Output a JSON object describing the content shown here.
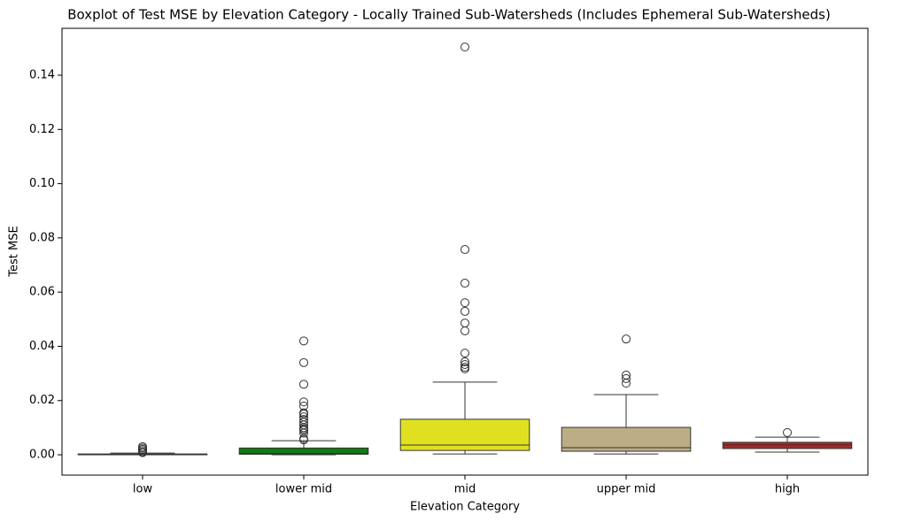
{
  "chart_data": {
    "type": "box",
    "title": "Boxplot of Test MSE by Elevation Category - Locally Trained Sub-Watersheds (Includes Ephemeral Sub-Watersheds)",
    "x_label": "Elevation Category",
    "y_label": "Test MSE",
    "categories": [
      "low",
      "lower mid",
      "mid",
      "upper mid",
      "high"
    ],
    "boxes": [
      {
        "color": "#4f5fa0",
        "min": 0.0,
        "q1": 0.0,
        "median": 0.0001,
        "q3": 0.0003,
        "max": 0.0006,
        "outliers": [
          0.0008,
          0.001,
          0.0015,
          0.002,
          0.0025,
          0.003
        ]
      },
      {
        "color": "#117a11",
        "min": 0.0,
        "q1": 0.0002,
        "median": 0.0005,
        "q3": 0.0025,
        "max": 0.0052,
        "outliers": [
          0.0055,
          0.006,
          0.008,
          0.009,
          0.0095,
          0.01,
          0.011,
          0.012,
          0.013,
          0.014,
          0.015,
          0.0155,
          0.018,
          0.0195,
          0.026,
          0.034,
          0.042
        ]
      },
      {
        "color": "#e0e020",
        "min": 0.0003,
        "q1": 0.0016,
        "median": 0.0036,
        "q3": 0.0131,
        "max": 0.0268,
        "outliers": [
          0.0317,
          0.0323,
          0.0333,
          0.0343,
          0.0375,
          0.0457,
          0.0486,
          0.0529,
          0.0561,
          0.0633,
          0.0757,
          0.1504
        ]
      },
      {
        "color": "#bcad85",
        "min": 0.0003,
        "q1": 0.0013,
        "median": 0.0026,
        "q3": 0.0101,
        "max": 0.0222,
        "outliers": [
          0.0264,
          0.0281,
          0.0294,
          0.0427
        ]
      },
      {
        "color": "#a52a2a",
        "min": 0.001,
        "q1": 0.0023,
        "median": 0.0036,
        "q3": 0.0046,
        "max": 0.0065,
        "outliers": [
          0.0082
        ]
      }
    ],
    "ylim": [
      -0.0075,
      0.1573
    ],
    "yticks": [
      {
        "value": 0,
        "label": "0.00"
      },
      {
        "value": 0.02,
        "label": "0.02"
      },
      {
        "value": 0.04,
        "label": "0.04"
      },
      {
        "value": 0.06,
        "label": "0.06"
      },
      {
        "value": 0.08,
        "label": "0.08"
      },
      {
        "value": 0.1,
        "label": "0.10"
      },
      {
        "value": 0.12,
        "label": "0.12"
      },
      {
        "value": 0.14,
        "label": "0.14"
      }
    ]
  }
}
